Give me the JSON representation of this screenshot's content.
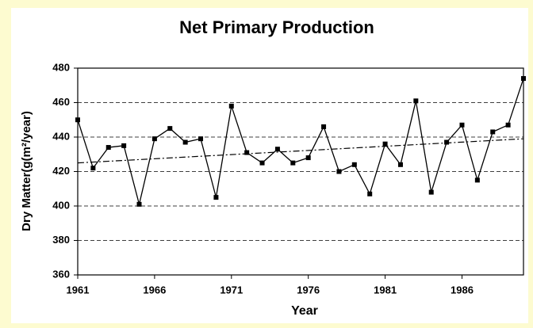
{
  "chart_data": {
    "type": "line",
    "title": "Net Primary Production",
    "x_label": "Year",
    "y_label": "Dry Matter(g(m²/year)",
    "x": [
      1961,
      1962,
      1963,
      1964,
      1965,
      1966,
      1967,
      1968,
      1969,
      1970,
      1971,
      1972,
      1973,
      1974,
      1975,
      1976,
      1977,
      1978,
      1979,
      1980,
      1981,
      1982,
      1983,
      1984,
      1985,
      1986,
      1987,
      1988,
      1989,
      1990
    ],
    "series": [
      {
        "color": "#000000",
        "values": [
          450,
          422,
          434,
          435,
          401,
          439,
          445,
          437,
          439,
          405,
          458,
          431,
          425,
          433,
          425,
          428,
          446,
          420,
          424,
          407,
          436,
          424,
          461,
          408,
          437,
          447,
          415,
          443,
          447,
          474
        ]
      }
    ],
    "trendline": {
      "x": [
        1961,
        1990
      ],
      "values": [
        425,
        439
      ],
      "color": "#000000"
    },
    "xlim": [
      1961,
      1990
    ],
    "xticks": [
      1961,
      1966,
      1971,
      1976,
      1981,
      1986
    ],
    "ylim": [
      360,
      480
    ],
    "yticks": [
      360,
      380,
      400,
      420,
      440,
      460,
      480
    ],
    "grid": true
  }
}
